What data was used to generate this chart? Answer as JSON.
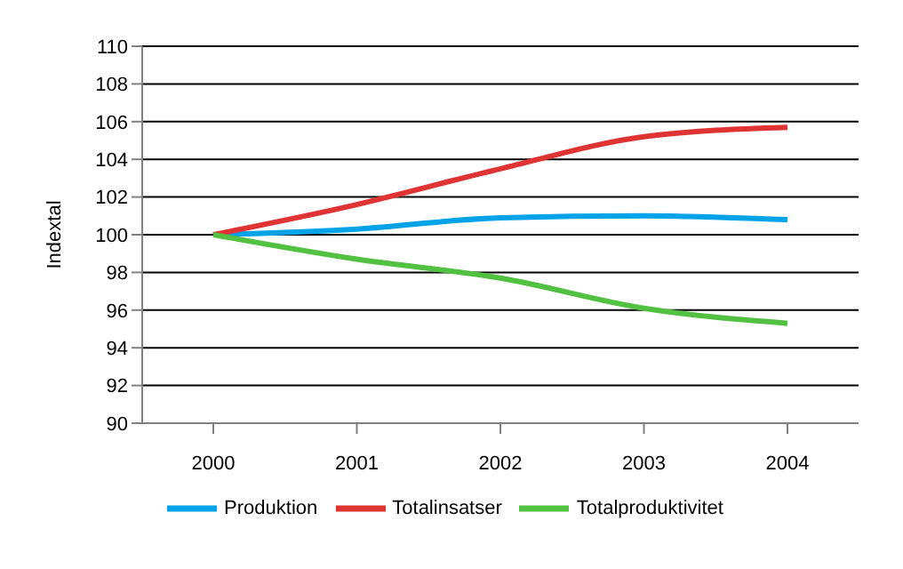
{
  "chart_data": {
    "type": "line",
    "ylabel": "Indextal",
    "categories": [
      "2000",
      "2001",
      "2002",
      "2003",
      "2004"
    ],
    "series": [
      {
        "name": "Produktion",
        "color": "#00a2e8",
        "values": [
          100,
          100.3,
          100.9,
          101.0,
          100.8
        ]
      },
      {
        "name": "Totalinsatser",
        "color": "#e03434",
        "values": [
          100,
          101.6,
          103.5,
          105.2,
          105.7
        ]
      },
      {
        "name": "Totalproduktivitet",
        "color": "#52c040",
        "values": [
          100,
          98.7,
          97.7,
          96.1,
          95.3
        ]
      }
    ],
    "ylim": [
      90,
      110
    ],
    "yticks": [
      90,
      92,
      94,
      96,
      98,
      100,
      102,
      104,
      106,
      108,
      110
    ],
    "grid": "y",
    "legend": "bottom",
    "marker": "none",
    "line_style": "solid"
  }
}
